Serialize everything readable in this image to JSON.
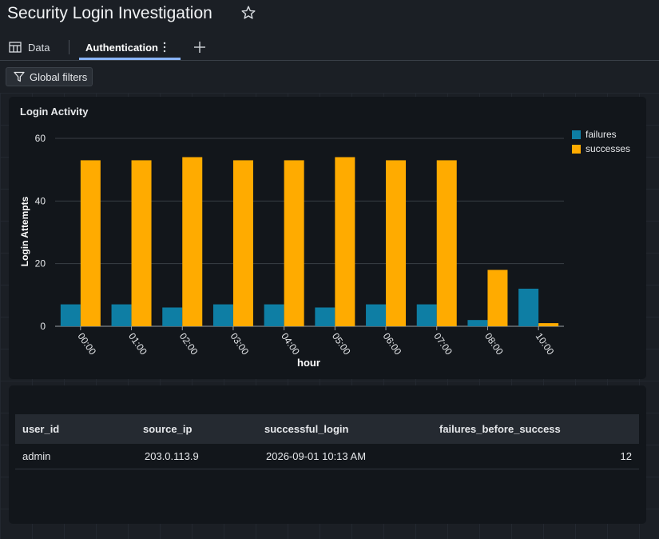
{
  "page": {
    "title": "Security Login Investigation"
  },
  "tabs": [
    {
      "label": "Data",
      "icon": "table-icon"
    },
    {
      "label": "Authentication",
      "active": true
    }
  ],
  "toolbar": {
    "global_filters_label": "Global filters"
  },
  "colors": {
    "failures": "#0e7ea4",
    "successes": "#ffab00",
    "active_tab": "#8ab4f8"
  },
  "chart_data": {
    "type": "bar",
    "title": "Login Activity",
    "xlabel": "hour",
    "ylabel": "Login Attempts",
    "categories": [
      "00:00",
      "01:00",
      "02:00",
      "03:00",
      "04:00",
      "05:00",
      "06:00",
      "07:00",
      "08:00",
      "10:00"
    ],
    "series": [
      {
        "name": "failures",
        "values": [
          7,
          7,
          6,
          7,
          7,
          6,
          7,
          7,
          2,
          12
        ]
      },
      {
        "name": "successes",
        "values": [
          53,
          53,
          54,
          53,
          53,
          54,
          53,
          53,
          18,
          1
        ]
      }
    ],
    "ylim": [
      0,
      60
    ],
    "yticks": [
      0,
      20,
      40,
      60
    ],
    "grid": true,
    "legend_position": "top-right"
  },
  "table": {
    "columns": [
      "user_id",
      "source_ip",
      "successful_login",
      "failures_before_success"
    ],
    "rows": [
      [
        "admin",
        "203.0.113.9",
        "2026-09-01 10:13 AM",
        "12"
      ]
    ]
  }
}
